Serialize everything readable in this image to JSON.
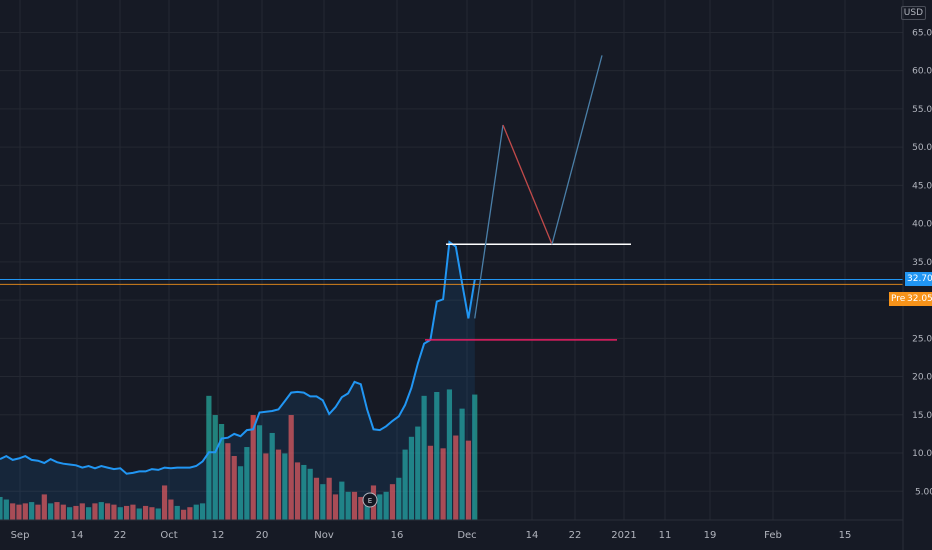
{
  "currency_label": "USD",
  "last_price_label": "32.70",
  "premarket_tag": "Pre",
  "premarket_price_label": "32.05",
  "earnings_marker": "E",
  "colors": {
    "background": "#161a25",
    "price_line": "#2196f3",
    "vol_up": "#26a69a",
    "vol_down": "#ef5350",
    "last_price": "#2196f3",
    "premarket": "#f7931a",
    "resistance": "#ffffff",
    "support": "#e91e63",
    "projection_up": "#4a7fa8",
    "projection_down": "#c14a4a"
  },
  "chart_data": {
    "type": "line",
    "y_axis_ticks": [
      "5.00",
      "10.00",
      "15.00",
      "20.00",
      "25.00",
      "30.00",
      "35.00",
      "40.00",
      "45.00",
      "50.00",
      "55.00",
      "60.00",
      "65.00"
    ],
    "ylim": [
      1.8,
      67
    ],
    "x_axis_ticks": [
      "Sep",
      "14",
      "22",
      "Oct",
      "12",
      "20",
      "Nov",
      "16",
      "Dec",
      "14",
      "22",
      "2021",
      "11",
      "19",
      "Feb",
      "15"
    ],
    "price_series": [
      9.2,
      9.6,
      9.1,
      9.3,
      9.6,
      9.1,
      9.0,
      8.7,
      9.2,
      8.8,
      8.6,
      8.5,
      8.4,
      8.1,
      8.3,
      8.0,
      8.3,
      8.1,
      7.9,
      8.0,
      7.3,
      7.4,
      7.6,
      7.6,
      7.9,
      7.8,
      8.1,
      8.0,
      8.1,
      8.1,
      8.1,
      8.3,
      8.9,
      10.1,
      10.1,
      11.9,
      12.0,
      12.5,
      12.2,
      13.0,
      13.1,
      15.3,
      15.4,
      15.5,
      15.7,
      16.8,
      17.9,
      18.0,
      17.9,
      17.4,
      17.4,
      16.9,
      15.1,
      16.0,
      17.3,
      17.8,
      19.3,
      19.0,
      15.7,
      13.1,
      13.0,
      13.5,
      14.2,
      14.8,
      16.3,
      18.5,
      21.7,
      24.3,
      24.8,
      29.8,
      30.1,
      37.6,
      37.0,
      32.2,
      27.6,
      32.7
    ],
    "volume_up": [
      true,
      true,
      false,
      false,
      false,
      true,
      false,
      false,
      true,
      false,
      false,
      true,
      false,
      false,
      true,
      false,
      true,
      false,
      false,
      true,
      false,
      false,
      true,
      false,
      false,
      true,
      false,
      false,
      true,
      false,
      false,
      true,
      true,
      true,
      true,
      true,
      false,
      false,
      true,
      true,
      false,
      true,
      false,
      true,
      false,
      true,
      false,
      false,
      true,
      true,
      false,
      true,
      false,
      false,
      true,
      true,
      false,
      false,
      true,
      false,
      true,
      true,
      false,
      true,
      true,
      true,
      true,
      true,
      false,
      true,
      false,
      true,
      false,
      true,
      false,
      true
    ],
    "volume": [
      0.18,
      0.16,
      0.13,
      0.12,
      0.13,
      0.14,
      0.12,
      0.2,
      0.13,
      0.14,
      0.12,
      0.1,
      0.11,
      0.13,
      0.1,
      0.13,
      0.14,
      0.13,
      0.12,
      0.1,
      0.11,
      0.12,
      0.09,
      0.11,
      0.1,
      0.09,
      0.27,
      0.16,
      0.11,
      0.08,
      0.1,
      0.12,
      0.13,
      0.97,
      0.82,
      0.75,
      0.6,
      0.5,
      0.42,
      0.57,
      0.82,
      0.74,
      0.52,
      0.68,
      0.55,
      0.52,
      0.82,
      0.45,
      0.43,
      0.4,
      0.33,
      0.28,
      0.33,
      0.2,
      0.3,
      0.22,
      0.22,
      0.18,
      0.2,
      0.27,
      0.2,
      0.22,
      0.28,
      0.33,
      0.55,
      0.65,
      0.73,
      0.97,
      0.58,
      1.0,
      0.56,
      1.02,
      0.66,
      0.87,
      0.62,
      0.98
    ],
    "levels": {
      "resistance": 37.3,
      "support": 24.8,
      "last_price": 32.7,
      "premarket_price": 32.05
    },
    "projection": [
      {
        "type": "up",
        "from": 27.6,
        "to": 52.9
      },
      {
        "type": "down",
        "from": 52.9,
        "to": 37.3
      },
      {
        "type": "up",
        "from": 37.3,
        "to": 62.0
      }
    ]
  }
}
